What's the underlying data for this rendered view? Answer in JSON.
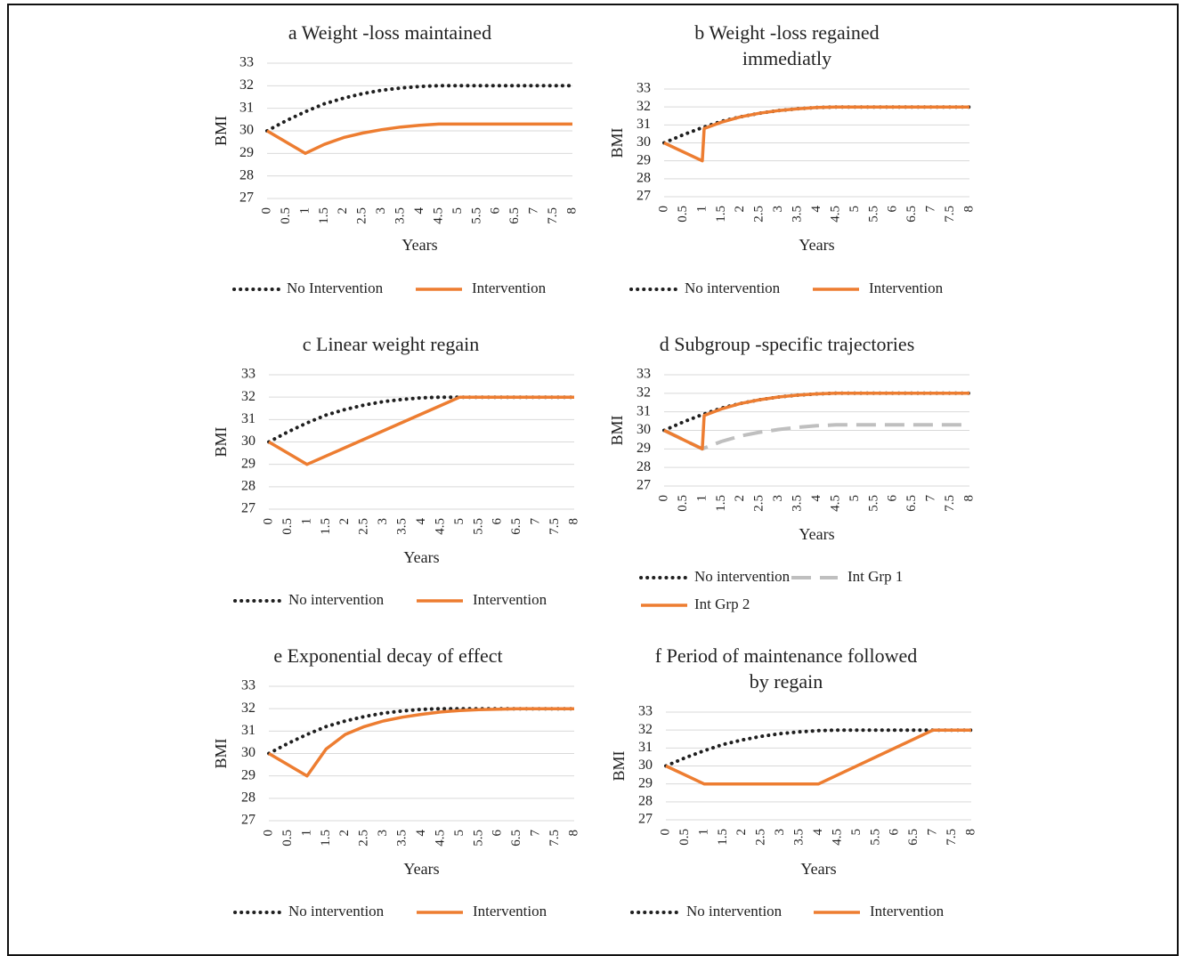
{
  "figure": {
    "border_color": "#111111"
  },
  "colors": {
    "no_intervention": "#1f1f1f",
    "intervention": "#ed7d31",
    "int_grp_1": "#bfbfbf",
    "grid": "#d9d9d9"
  },
  "chart_data": [
    {
      "type": "line",
      "title": "a Weight -loss maintained",
      "xlabel": "Years",
      "ylabel": "BMI",
      "ylim": [
        27,
        33
      ],
      "xlim": [
        0,
        8
      ],
      "yticks": [
        "27",
        "28",
        "29",
        "30",
        "31",
        "32",
        "33"
      ],
      "xticks": [
        "0",
        "0.5",
        "1",
        "1.5",
        "2",
        "2.5",
        "3",
        "3.5",
        "4",
        "4.5",
        "5",
        "5.5",
        "6",
        "6.5",
        "7",
        "7.5",
        "8"
      ],
      "grid": true,
      "legend_position": "bottom",
      "series": [
        {
          "name": "No Intervention",
          "style": "dotted",
          "color": "#1f1f1f",
          "x": [
            0,
            0.5,
            1,
            1.5,
            2,
            2.5,
            3,
            3.5,
            4,
            4.5,
            5,
            5.5,
            6,
            6.5,
            7,
            7.5,
            8
          ],
          "y": [
            30,
            30.45,
            30.85,
            31.2,
            31.45,
            31.65,
            31.8,
            31.9,
            31.97,
            32,
            32,
            32,
            32,
            32,
            32,
            32,
            32
          ]
        },
        {
          "name": "Intervention",
          "style": "solid",
          "color": "#ed7d31",
          "x": [
            0,
            1,
            1.5,
            2,
            2.5,
            3,
            3.5,
            4,
            4.5,
            5,
            5.5,
            6,
            6.5,
            7,
            7.5,
            8
          ],
          "y": [
            30,
            29,
            29.4,
            29.7,
            29.9,
            30.05,
            30.17,
            30.25,
            30.3,
            30.3,
            30.3,
            30.3,
            30.3,
            30.3,
            30.3,
            30.3
          ]
        }
      ]
    },
    {
      "type": "line",
      "title": "b Weight -loss regained immediatly",
      "title_lines": [
        "b Weight -loss regained",
        "immediatly"
      ],
      "xlabel": "Years",
      "ylabel": "BMI",
      "ylim": [
        27,
        33
      ],
      "xlim": [
        0,
        8
      ],
      "yticks": [
        "27",
        "28",
        "29",
        "30",
        "31",
        "32",
        "33"
      ],
      "xticks": [
        "0",
        "0.5",
        "1",
        "1.5",
        "2",
        "2.5",
        "3",
        "3.5",
        "4",
        "4.5",
        "5",
        "5.5",
        "6",
        "6.5",
        "7",
        "7.5",
        "8"
      ],
      "grid": true,
      "legend_position": "bottom",
      "series": [
        {
          "name": "No intervention",
          "style": "dotted",
          "color": "#1f1f1f",
          "x": [
            0,
            0.5,
            1,
            1.5,
            2,
            2.5,
            3,
            3.5,
            4,
            4.5,
            5,
            5.5,
            6,
            6.5,
            7,
            7.5,
            8
          ],
          "y": [
            30,
            30.45,
            30.85,
            31.2,
            31.45,
            31.65,
            31.8,
            31.9,
            31.97,
            32,
            32,
            32,
            32,
            32,
            32,
            32,
            32
          ]
        },
        {
          "name": "Intervention",
          "style": "solid",
          "color": "#ed7d31",
          "x": [
            0,
            1,
            1.05,
            1.5,
            2,
            2.5,
            3,
            3.5,
            4,
            4.5,
            5,
            5.5,
            6,
            6.5,
            7,
            7.5,
            8
          ],
          "y": [
            30,
            29,
            30.8,
            31.15,
            31.45,
            31.65,
            31.8,
            31.9,
            31.97,
            32,
            32,
            32,
            32,
            32,
            32,
            32,
            32
          ]
        }
      ]
    },
    {
      "type": "line",
      "title": "c  Linear weight regain",
      "xlabel": "Years",
      "ylabel": "BMI",
      "ylim": [
        27,
        33
      ],
      "xlim": [
        0,
        8
      ],
      "yticks": [
        "27",
        "28",
        "29",
        "30",
        "31",
        "32",
        "33"
      ],
      "xticks": [
        "0",
        "0.5",
        "1",
        "1.5",
        "2",
        "2.5",
        "3",
        "3.5",
        "4",
        "4.5",
        "5",
        "5.5",
        "6",
        "6.5",
        "7",
        "7.5",
        "8"
      ],
      "grid": true,
      "legend_position": "bottom",
      "series": [
        {
          "name": "No intervention",
          "style": "dotted",
          "color": "#1f1f1f",
          "x": [
            0,
            0.5,
            1,
            1.5,
            2,
            2.5,
            3,
            3.5,
            4,
            4.5,
            5,
            5.5,
            6,
            6.5,
            7,
            7.5,
            8
          ],
          "y": [
            30,
            30.45,
            30.85,
            31.2,
            31.45,
            31.65,
            31.8,
            31.9,
            31.97,
            32,
            32,
            32,
            32,
            32,
            32,
            32,
            32
          ]
        },
        {
          "name": "Intervention",
          "style": "solid",
          "color": "#ed7d31",
          "x": [
            0,
            1,
            5,
            5.5,
            6,
            6.5,
            7,
            7.5,
            8
          ],
          "y": [
            30,
            29,
            32,
            32,
            32,
            32,
            32,
            32,
            32
          ]
        }
      ]
    },
    {
      "type": "line",
      "title": "d Subgroup -specific trajectories",
      "xlabel": "Years",
      "ylabel": "BMI",
      "ylim": [
        27,
        33
      ],
      "xlim": [
        0,
        8
      ],
      "yticks": [
        "27",
        "28",
        "29",
        "30",
        "31",
        "32",
        "33"
      ],
      "xticks": [
        "0",
        "0.5",
        "1",
        "1.5",
        "2",
        "2.5",
        "3",
        "3.5",
        "4",
        "4.5",
        "5",
        "5.5",
        "6",
        "6.5",
        "7",
        "7.5",
        "8"
      ],
      "grid": true,
      "legend_position": "bottom",
      "series": [
        {
          "name": "No intervention",
          "style": "dotted",
          "color": "#1f1f1f",
          "x": [
            0,
            0.5,
            1,
            1.5,
            2,
            2.5,
            3,
            3.5,
            4,
            4.5,
            5,
            5.5,
            6,
            6.5,
            7,
            7.5,
            8
          ],
          "y": [
            30,
            30.45,
            30.85,
            31.2,
            31.45,
            31.65,
            31.8,
            31.9,
            31.97,
            32,
            32,
            32,
            32,
            32,
            32,
            32,
            32
          ]
        },
        {
          "name": "Int Grp 1",
          "style": "dashed",
          "color": "#bfbfbf",
          "x": [
            0,
            1,
            1.5,
            2,
            2.5,
            3,
            3.5,
            4,
            4.5,
            5,
            5.5,
            6,
            6.5,
            7,
            7.5,
            8
          ],
          "y": [
            30,
            29,
            29.4,
            29.7,
            29.9,
            30.05,
            30.17,
            30.25,
            30.3,
            30.3,
            30.3,
            30.3,
            30.3,
            30.3,
            30.3,
            30.3
          ]
        },
        {
          "name": "Int Grp 2",
          "style": "solid",
          "color": "#ed7d31",
          "x": [
            0,
            1,
            1.05,
            1.5,
            2,
            2.5,
            3,
            3.5,
            4,
            4.5,
            5,
            5.5,
            6,
            6.5,
            7,
            7.5,
            8
          ],
          "y": [
            30,
            29,
            30.8,
            31.15,
            31.45,
            31.65,
            31.8,
            31.9,
            31.97,
            32,
            32,
            32,
            32,
            32,
            32,
            32,
            32
          ]
        }
      ]
    },
    {
      "type": "line",
      "title": "e Exponential decay of effect",
      "xlabel": "Years",
      "ylabel": "BMI",
      "ylim": [
        27,
        33
      ],
      "xlim": [
        0,
        8
      ],
      "yticks": [
        "27",
        "28",
        "29",
        "30",
        "31",
        "32",
        "33"
      ],
      "xticks": [
        "0",
        "0.5",
        "1",
        "1.5",
        "2",
        "2.5",
        "3",
        "3.5",
        "4",
        "4.5",
        "5",
        "5.5",
        "6",
        "6.5",
        "7",
        "7.5",
        "8"
      ],
      "grid": true,
      "legend_position": "bottom",
      "series": [
        {
          "name": "No intervention",
          "style": "dotted",
          "color": "#1f1f1f",
          "x": [
            0,
            0.5,
            1,
            1.5,
            2,
            2.5,
            3,
            3.5,
            4,
            4.5,
            5,
            5.5,
            6,
            6.5,
            7,
            7.5,
            8
          ],
          "y": [
            30,
            30.45,
            30.85,
            31.2,
            31.45,
            31.65,
            31.8,
            31.9,
            31.97,
            32,
            32,
            32,
            32,
            32,
            32,
            32,
            32
          ]
        },
        {
          "name": "Intervention",
          "style": "solid",
          "color": "#ed7d31",
          "x": [
            0,
            1,
            1.5,
            2,
            2.5,
            3,
            3.5,
            4,
            4.5,
            5,
            5.5,
            6,
            6.5,
            7,
            7.5,
            8
          ],
          "y": [
            30,
            29,
            30.2,
            30.85,
            31.2,
            31.45,
            31.62,
            31.75,
            31.85,
            31.92,
            31.96,
            31.98,
            32,
            32,
            32,
            32
          ]
        }
      ]
    },
    {
      "type": "line",
      "title": "f Period of maintenance followed by regain",
      "title_lines": [
        "f Period of maintenance followed",
        "by regain"
      ],
      "xlabel": "Years",
      "ylabel": "BMI",
      "ylim": [
        27,
        33
      ],
      "xlim": [
        0,
        8
      ],
      "yticks": [
        "27",
        "28",
        "29",
        "30",
        "31",
        "32",
        "33"
      ],
      "xticks": [
        "0",
        "0.5",
        "1",
        "1.5",
        "2",
        "2.5",
        "3",
        "3.5",
        "4",
        "4.5",
        "5",
        "5.5",
        "6",
        "6.5",
        "7",
        "7.5",
        "8"
      ],
      "grid": true,
      "legend_position": "bottom",
      "series": [
        {
          "name": "No intervention",
          "style": "dotted",
          "color": "#1f1f1f",
          "x": [
            0,
            0.5,
            1,
            1.5,
            2,
            2.5,
            3,
            3.5,
            4,
            4.5,
            5,
            5.5,
            6,
            6.5,
            7,
            7.5,
            8
          ],
          "y": [
            30,
            30.45,
            30.85,
            31.2,
            31.45,
            31.65,
            31.8,
            31.9,
            31.97,
            32,
            32,
            32,
            32,
            32,
            32,
            32,
            32
          ]
        },
        {
          "name": "Intervention",
          "style": "solid",
          "color": "#ed7d31",
          "x": [
            0,
            1,
            4,
            7,
            7.5,
            8
          ],
          "y": [
            30,
            29,
            29,
            32,
            32,
            32
          ]
        }
      ]
    }
  ]
}
